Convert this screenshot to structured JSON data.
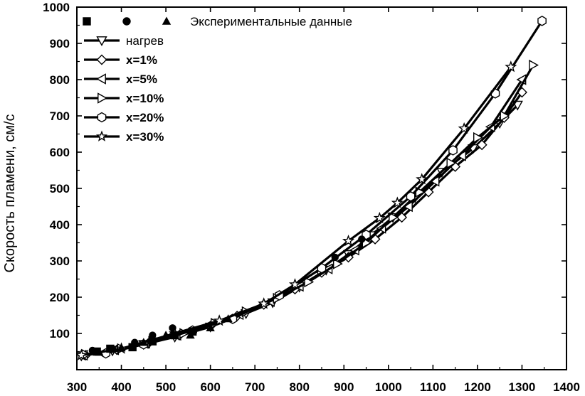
{
  "chart_data": {
    "type": "scatter",
    "title": "",
    "xlabel": "",
    "ylabel": "Скорость пламени, см/с",
    "xlim": [
      300,
      1400
    ],
    "ylim": [
      0,
      1000
    ],
    "x_ticks": [
      "300",
      "400",
      "500",
      "600",
      "700",
      "800",
      "900",
      "1000",
      "1100",
      "1200",
      "1300",
      "1400"
    ],
    "y_ticks": [
      "100",
      "200",
      "300",
      "400",
      "500",
      "600",
      "700",
      "800",
      "900",
      "1000"
    ],
    "grid": false,
    "legend_position": "top-left",
    "experimental": {
      "name": "Экспериментальные данные",
      "groups": [
        {
          "marker": "square",
          "points": [
            [
              345,
              50
            ],
            [
              375,
              58
            ],
            [
              425,
              62
            ],
            [
              470,
              78
            ],
            [
              520,
              95
            ],
            [
              560,
              105
            ]
          ]
        },
        {
          "marker": "circle",
          "points": [
            [
              335,
              53
            ],
            [
              380,
              58
            ],
            [
              430,
              75
            ],
            [
              470,
              95
            ],
            [
              515,
              115
            ],
            [
              880,
              310
            ],
            [
              940,
              360
            ]
          ]
        },
        {
          "marker": "triangle",
          "points": [
            [
              350,
              48
            ],
            [
              400,
              60
            ],
            [
              450,
              75
            ],
            [
              500,
              95
            ],
            [
              555,
              95
            ],
            [
              600,
              115
            ],
            [
              640,
              140
            ]
          ]
        }
      ]
    },
    "series": [
      {
        "name": "нагрев",
        "marker": "triangle-down",
        "points": [
          [
            310,
            38
          ],
          [
            380,
            52
          ],
          [
            450,
            70
          ],
          [
            520,
            90
          ],
          [
            600,
            118
          ],
          [
            680,
            155
          ],
          [
            740,
            185
          ],
          [
            800,
            228
          ],
          [
            860,
            275
          ],
          [
            910,
            318
          ],
          [
            960,
            370
          ],
          [
            1010,
            420
          ],
          [
            1060,
            475
          ],
          [
            1120,
            545
          ],
          [
            1190,
            610
          ],
          [
            1250,
            680
          ],
          [
            1290,
            730
          ]
        ]
      },
      {
        "name": "x=1%",
        "marker": "diamond",
        "points": [
          [
            320,
            40
          ],
          [
            390,
            55
          ],
          [
            460,
            72
          ],
          [
            530,
            95
          ],
          [
            600,
            120
          ],
          [
            660,
            148
          ],
          [
            720,
            180
          ],
          [
            790,
            222
          ],
          [
            850,
            268
          ],
          [
            910,
            310
          ],
          [
            970,
            360
          ],
          [
            1030,
            420
          ],
          [
            1090,
            490
          ],
          [
            1150,
            560
          ],
          [
            1210,
            620
          ],
          [
            1260,
            695
          ],
          [
            1300,
            765
          ]
        ]
      },
      {
        "name": "x=5%",
        "marker": "triangle-left",
        "points": [
          [
            315,
            40
          ],
          [
            385,
            55
          ],
          [
            455,
            73
          ],
          [
            525,
            95
          ],
          [
            595,
            122
          ],
          [
            665,
            152
          ],
          [
            735,
            188
          ],
          [
            800,
            230
          ],
          [
            865,
            278
          ],
          [
            925,
            330
          ],
          [
            985,
            390
          ],
          [
            1045,
            450
          ],
          [
            1105,
            520
          ],
          [
            1165,
            590
          ],
          [
            1230,
            670
          ],
          [
            1300,
            800
          ]
        ]
      },
      {
        "name": "x=10%",
        "marker": "triangle-right",
        "points": [
          [
            320,
            42
          ],
          [
            400,
            58
          ],
          [
            470,
            78
          ],
          [
            540,
            100
          ],
          [
            610,
            128
          ],
          [
            680,
            160
          ],
          [
            750,
            197
          ],
          [
            820,
            242
          ],
          [
            885,
            292
          ],
          [
            950,
            350
          ],
          [
            1010,
            420
          ],
          [
            1070,
            490
          ],
          [
            1140,
            570
          ],
          [
            1200,
            640
          ],
          [
            1260,
            700
          ],
          [
            1325,
            840
          ]
        ]
      },
      {
        "name": "x=20%",
        "marker": "hexagon",
        "points": [
          [
            365,
            45
          ],
          [
            450,
            70
          ],
          [
            560,
            108
          ],
          [
            650,
            140
          ],
          [
            755,
            205
          ],
          [
            850,
            280
          ],
          [
            950,
            372
          ],
          [
            1050,
            478
          ],
          [
            1145,
            605
          ],
          [
            1240,
            762
          ],
          [
            1345,
            962
          ]
        ]
      },
      {
        "name": "x=30%",
        "marker": "star",
        "points": [
          [
            310,
            40
          ],
          [
            400,
            58
          ],
          [
            520,
            100
          ],
          [
            620,
            135
          ],
          [
            720,
            182
          ],
          [
            790,
            235
          ],
          [
            910,
            355
          ],
          [
            980,
            418
          ],
          [
            1020,
            460
          ],
          [
            1075,
            525
          ],
          [
            1170,
            665
          ],
          [
            1275,
            835
          ]
        ]
      }
    ]
  }
}
